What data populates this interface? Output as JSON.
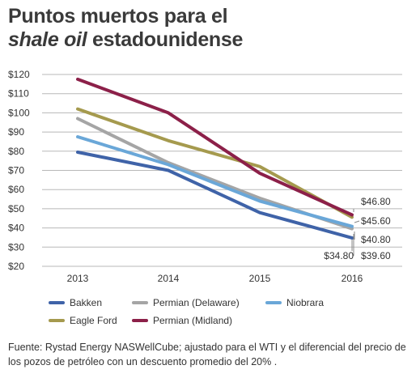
{
  "title": {
    "line1": "Puntos muertos para el",
    "line2_italic": "shale oil",
    "line2_rest": " estadounidense"
  },
  "source": "Fuente: Rystad Energy NASWellCube; ajustado para el WTI y el diferencial del precio de los pozos de petróleo con un descuento promedio del 20% .",
  "chart_data": {
    "type": "line",
    "title": "Puntos muertos para el shale oil estadounidense",
    "x": [
      "2013",
      "2014",
      "2015",
      "2016"
    ],
    "ylim": [
      20,
      120
    ],
    "yticks": [
      "$120",
      "$110",
      "$100",
      "$90",
      "$80",
      "$70",
      "$60",
      "$50",
      "$40",
      "$30",
      "$20"
    ],
    "ytick_values": [
      120,
      110,
      100,
      90,
      80,
      70,
      60,
      50,
      40,
      30,
      20
    ],
    "grid": true,
    "legend": "bottom",
    "series": [
      {
        "name": "Bakken",
        "color": "#3f63a8",
        "values": [
          79.5,
          70,
          48,
          34.8
        ]
      },
      {
        "name": "Eagle Ford",
        "color": "#a59a4e",
        "values": [
          102,
          85.5,
          72,
          45.6
        ]
      },
      {
        "name": "Permian (Delaware)",
        "color": "#a5a5a5",
        "values": [
          97,
          74,
          55.5,
          39.6
        ]
      },
      {
        "name": "Permian (Midland)",
        "color": "#8c2049",
        "values": [
          117.5,
          100,
          68.5,
          46.8
        ]
      },
      {
        "name": "Niobrara",
        "color": "#6aa7d8",
        "values": [
          87.5,
          73,
          54,
          40.8
        ]
      }
    ],
    "end_labels": [
      "$46.80",
      "$45.60",
      "$40.80",
      "$39.60",
      "$34.80"
    ]
  }
}
